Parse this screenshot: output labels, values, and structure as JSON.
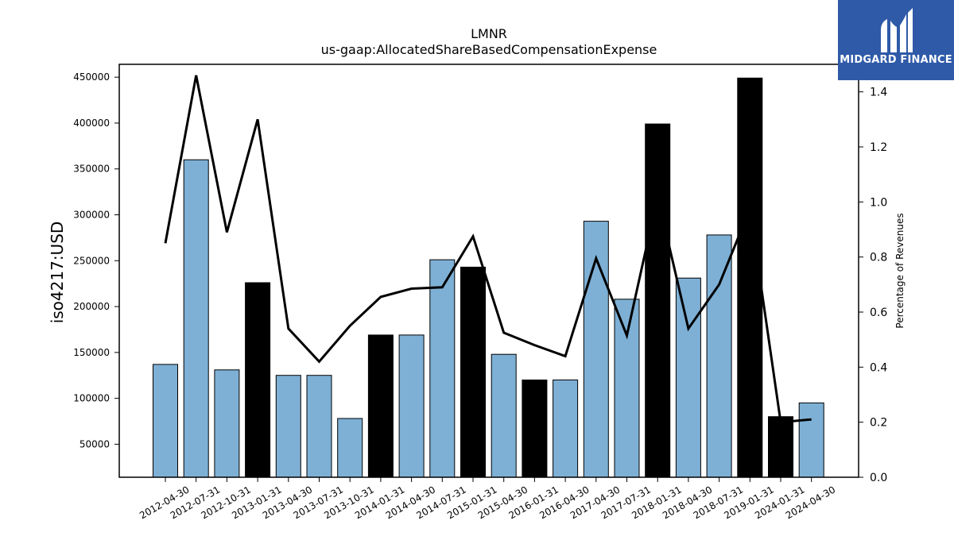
{
  "chart_data": {
    "type": "bar",
    "title": "LMNR",
    "subtitle": "us-gaap:AllocatedShareBasedCompensationExpense",
    "ylabel": "iso4217:USD",
    "ylabel_right": "Percentage of Revenues",
    "ylim": [
      14000,
      464000
    ],
    "ylim_right": [
      0,
      1.5
    ],
    "yticks": [
      50000,
      100000,
      150000,
      200000,
      250000,
      300000,
      350000,
      400000,
      450000
    ],
    "yticks_right": [
      0.0,
      0.2,
      0.4,
      0.6,
      0.8,
      1.0,
      1.2,
      1.4
    ],
    "categories": [
      "2012-04-30",
      "2012-07-31",
      "2012-10-31",
      "2013-01-31",
      "2013-04-30",
      "2013-07-31",
      "2013-10-31",
      "2014-01-31",
      "2014-04-30",
      "2014-07-31",
      "2015-01-31",
      "2015-04-30",
      "2016-01-31",
      "2016-04-30",
      "2017-04-30",
      "2017-07-31",
      "2018-01-31",
      "2018-04-30",
      "2018-07-31",
      "2019-01-31",
      "2024-01-31",
      "2024-04-30"
    ],
    "values": [
      137000,
      360000,
      131000,
      226000,
      125000,
      125000,
      78000,
      169000,
      169000,
      251000,
      243000,
      148000,
      120000,
      120000,
      293000,
      208000,
      399000,
      231000,
      278000,
      449000,
      80000,
      95000
    ],
    "bar_colors": [
      "#7eb0d5",
      "#7eb0d5",
      "#7eb0d5",
      "#000000",
      "#7eb0d5",
      "#7eb0d5",
      "#7eb0d5",
      "#000000",
      "#7eb0d5",
      "#7eb0d5",
      "#000000",
      "#7eb0d5",
      "#000000",
      "#7eb0d5",
      "#7eb0d5",
      "#7eb0d5",
      "#000000",
      "#7eb0d5",
      "#7eb0d5",
      "#000000",
      "#000000",
      "#7eb0d5"
    ],
    "series": [
      {
        "axis": "right",
        "type": "line",
        "values": [
          0.85,
          1.46,
          0.89,
          1.3,
          0.54,
          0.42,
          0.55,
          0.655,
          0.685,
          0.69,
          0.875,
          0.525,
          0.48,
          0.44,
          0.795,
          0.515,
          1.02,
          0.54,
          0.7,
          0.975,
          0.2,
          0.21
        ]
      }
    ],
    "grid": false
  },
  "logo": {
    "text": "MIDGARD FINANCE",
    "background": "#2f5aa8"
  }
}
